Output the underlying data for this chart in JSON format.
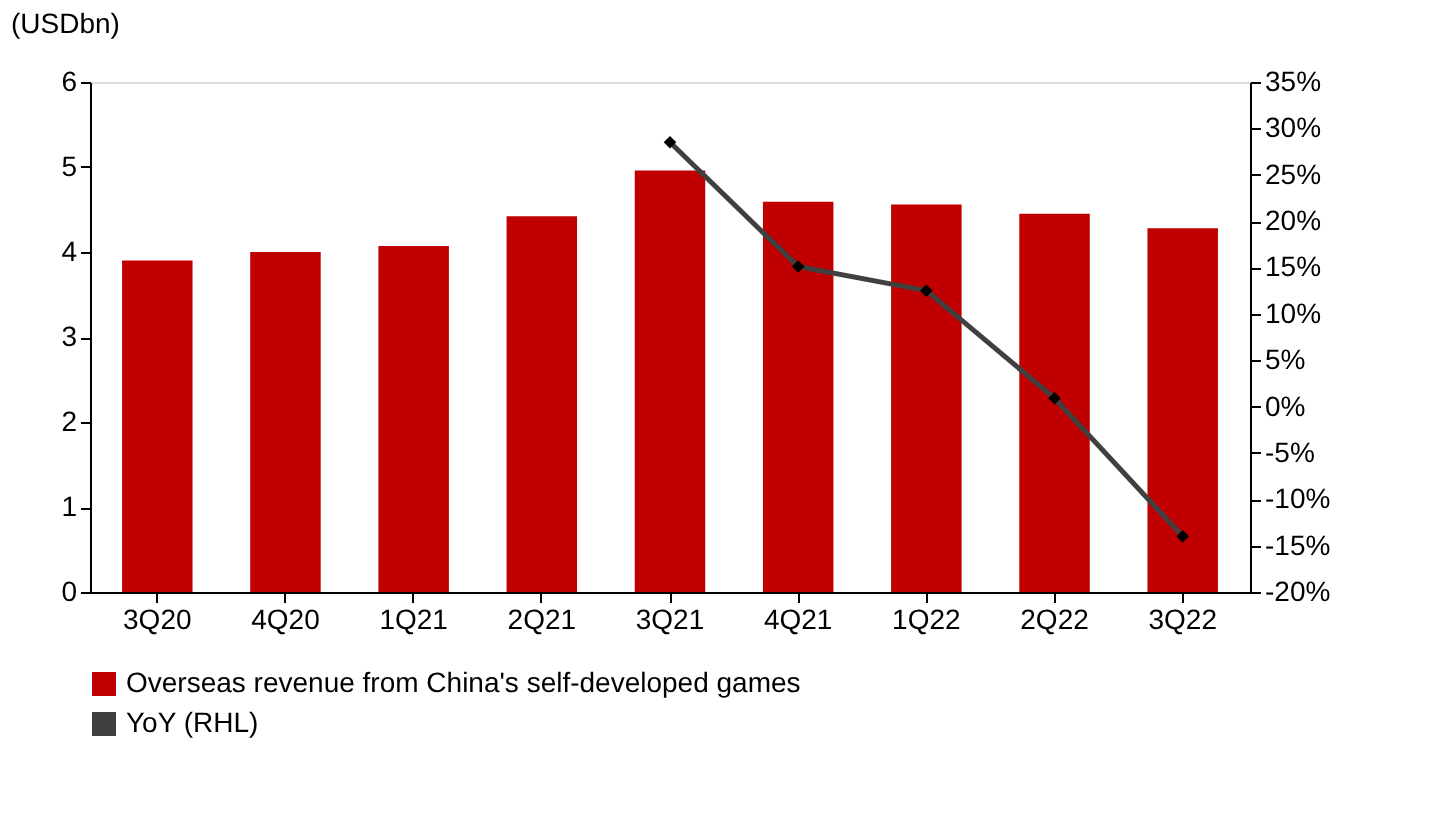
{
  "chart_data": {
    "type": "bar",
    "ylabel": "(USDbn)",
    "categories": [
      "3Q20",
      "4Q20",
      "1Q21",
      "2Q21",
      "3Q21",
      "4Q21",
      "1Q22",
      "2Q22",
      "3Q22"
    ],
    "series": [
      {
        "name": "Overseas revenue from China's self-developed games",
        "color": "#c00000",
        "values": [
          3.9,
          4.0,
          4.07,
          4.42,
          4.96,
          4.59,
          4.56,
          4.45,
          4.28
        ]
      },
      {
        "name": "YoY (RHL)",
        "type": "line",
        "axis": "y2",
        "color": "#404040",
        "marker": "diamond",
        "line_style": "solid",
        "values": [
          null,
          null,
          null,
          null,
          28.5,
          15.1,
          12.5,
          0.9,
          -14
        ]
      }
    ],
    "ylim": [
      0,
      6
    ],
    "yticks": [
      0,
      1,
      2,
      3,
      4,
      5,
      6
    ],
    "y2lim": [
      -20,
      35
    ],
    "y2ticks": [
      {
        "value": -20,
        "label": "-20%"
      },
      {
        "value": -15,
        "label": "-15%"
      },
      {
        "value": -10,
        "label": "-10%"
      },
      {
        "value": -5,
        "label": "-5%"
      },
      {
        "value": 0,
        "label": "0%"
      },
      {
        "value": 5,
        "label": "5%"
      },
      {
        "value": 10,
        "label": "10%"
      },
      {
        "value": 15,
        "label": "15%"
      },
      {
        "value": 20,
        "label": "20%"
      },
      {
        "value": 25,
        "label": "25%"
      },
      {
        "value": 30,
        "label": "30%"
      },
      {
        "value": 35,
        "label": "35%"
      }
    ],
    "grid": false,
    "legend": "bottom"
  }
}
